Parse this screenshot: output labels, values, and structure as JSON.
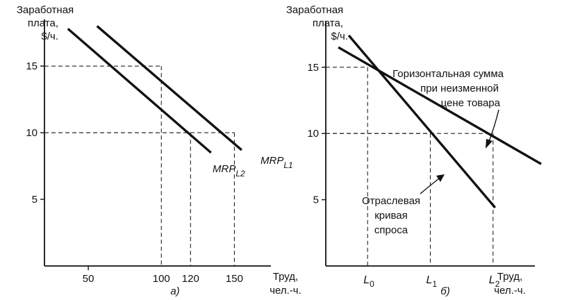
{
  "chart_data": [
    {
      "panel_label": "а)",
      "type": "line",
      "ylabel_lines": [
        "Заработная",
        "плата,",
        "$/ч."
      ],
      "xlabel_lines": [
        "Труд,",
        "чел.-ч."
      ],
      "xlim": [
        20,
        175
      ],
      "ylim": [
        0,
        18.5
      ],
      "xticks": [
        50,
        100,
        120,
        150
      ],
      "yticks": [
        5,
        10,
        15
      ],
      "series": [
        {
          "name": "MRP_L1",
          "label_main": "MRP",
          "label_sub": "L1",
          "x": [
            56,
            155
          ],
          "y": [
            18.0,
            8.7
          ]
        },
        {
          "name": "MRP_L2",
          "label_main": "MRP",
          "label_sub": "L2",
          "x": [
            36,
            134
          ],
          "y": [
            17.8,
            8.5
          ]
        }
      ],
      "reference_points": [
        {
          "x": 100,
          "y": 15
        },
        {
          "x": 120,
          "y": 10
        },
        {
          "x": 150,
          "y": 10
        }
      ]
    },
    {
      "panel_label": "б)",
      "type": "line",
      "ylabel_lines": [
        "Заработная",
        "плата,",
        "$/ч."
      ],
      "xlabel_lines": [
        "Труд,",
        "чел.-ч."
      ],
      "xlim": [
        0,
        10
      ],
      "ylim": [
        0,
        18.5
      ],
      "yticks": [
        5,
        10,
        15
      ],
      "xtick_labels": [
        {
          "main": "L",
          "sub": "0",
          "x": 2
        },
        {
          "main": "L",
          "sub": "1",
          "x": 5
        },
        {
          "main": "L",
          "sub": "2",
          "x": 8
        }
      ],
      "series": [
        {
          "name": "Горизонтальная сумма при неизменной цене товара",
          "x": [
            0.6,
            10.3
          ],
          "y": [
            16.5,
            7.7
          ]
        },
        {
          "name": "Отраслевая кривая спроса",
          "x": [
            1.1,
            8.1
          ],
          "y": [
            17.4,
            4.4
          ]
        }
      ],
      "reference_points": [
        {
          "x": 2,
          "y": 15
        },
        {
          "x": 5,
          "y": 10
        },
        {
          "x": 8,
          "y": 10
        }
      ],
      "annotations": [
        {
          "lines": [
            "Горизонтальная сумма",
            "при неизменной",
            "цене товара"
          ]
        },
        {
          "lines": [
            "Отраслевая",
            "кривая",
            "спроса"
          ]
        }
      ]
    }
  ]
}
